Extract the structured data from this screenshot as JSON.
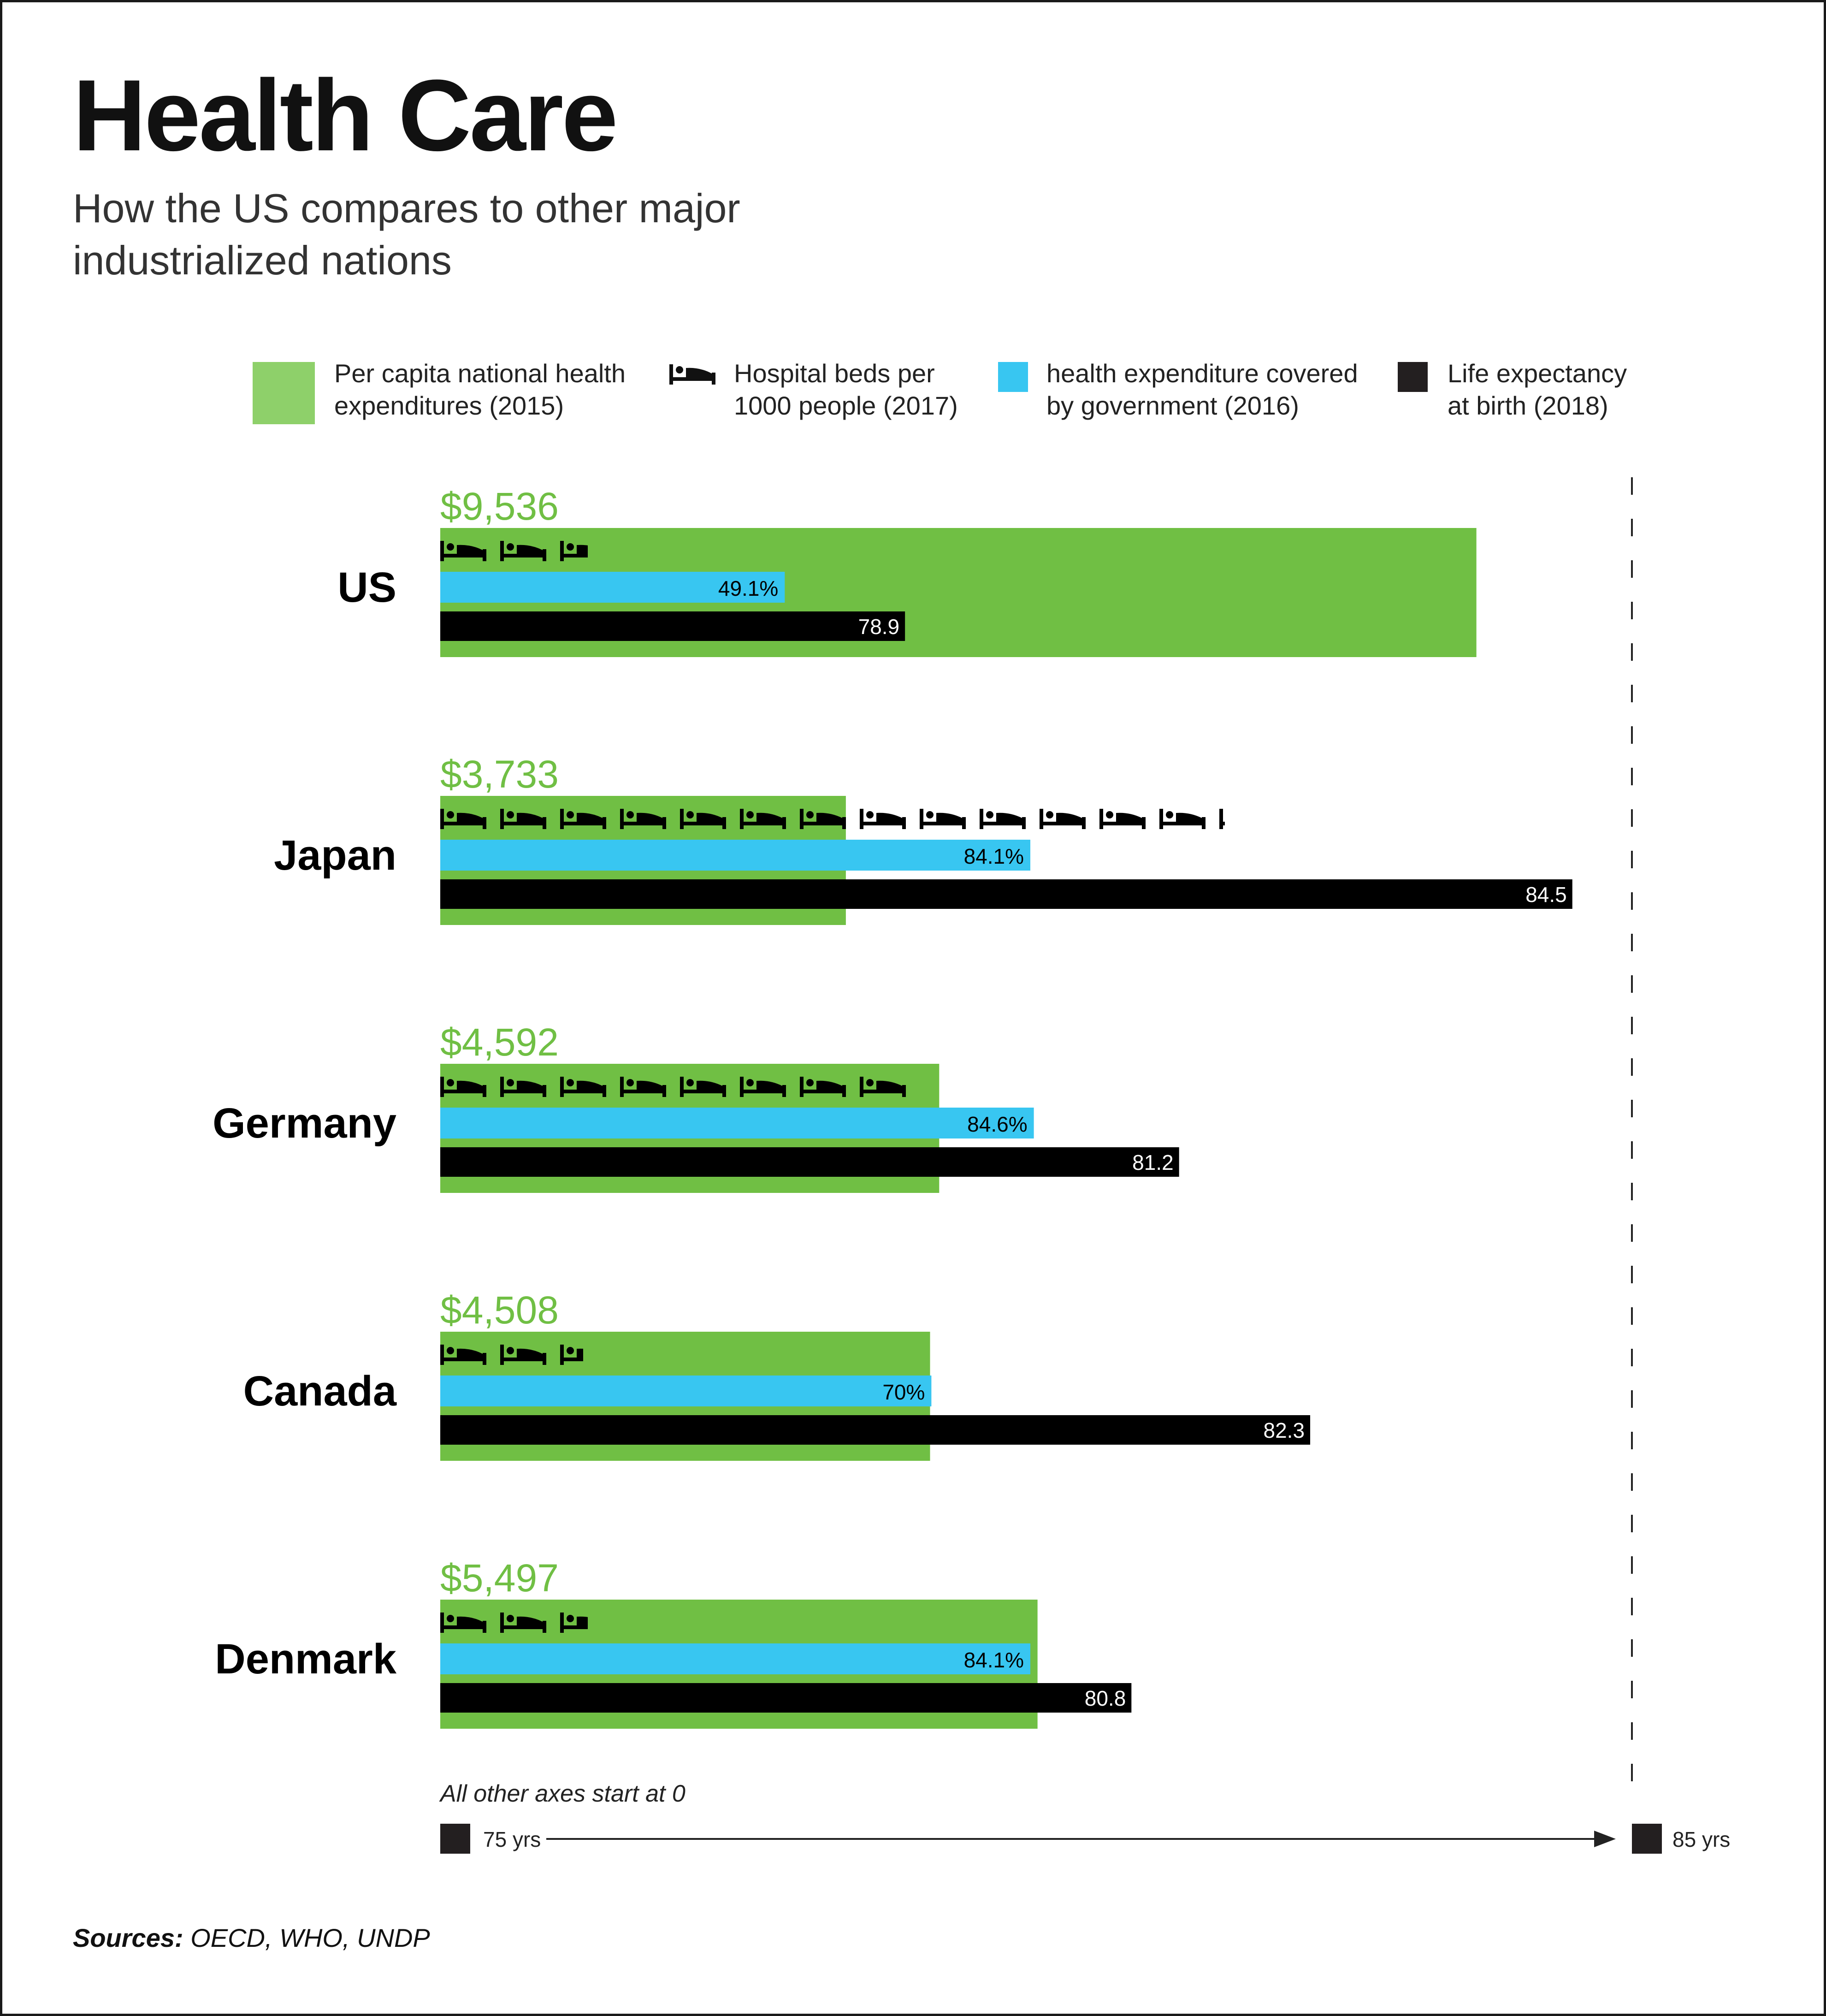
{
  "title": "Health Care",
  "subtitle": "How the US compares to other major industrialized nations",
  "legend": [
    {
      "label": "Per capita national health expenditures (2015)",
      "color": "#8ed06a",
      "icon": "green-square"
    },
    {
      "label": "Hospital beds per 1000 people (2017)",
      "icon": "bed-icon"
    },
    {
      "label": "health expenditure covered by government (2016)",
      "color": "#38c6f1",
      "icon": "blue-square"
    },
    {
      "label": "Life expectancy at birth (2018)",
      "color": "#231f20",
      "icon": "black-square"
    }
  ],
  "chart_data": {
    "type": "bar",
    "categories": [
      "US",
      "Japan",
      "Germany",
      "Canada",
      "Denmark"
    ],
    "series": [
      {
        "name": "Per capita national health expenditures (2015)",
        "unit": "$",
        "color": "#70bf44",
        "values": [
          9536,
          3733,
          4592,
          4508,
          5497
        ],
        "labels": [
          "$9,536",
          "$3,733",
          "$4,592",
          "$4,508",
          "$5,497"
        ]
      },
      {
        "name": "Hospital beds per 1000 people (2017)",
        "unit": "beds",
        "values": [
          2.6,
          13.1,
          8.0,
          2.5,
          2.6
        ]
      },
      {
        "name": "health expenditure covered by government (2016)",
        "unit": "%",
        "color": "#38c6f1",
        "values": [
          49.1,
          84.1,
          84.6,
          70,
          84.1
        ],
        "labels": [
          "49.1%",
          "84.1%",
          "84.6%",
          "70%",
          "84.1%"
        ]
      },
      {
        "name": "Life expectancy at birth (2018)",
        "unit": "yrs",
        "color": "#000000",
        "values": [
          78.9,
          84.5,
          81.2,
          82.3,
          80.8
        ],
        "labels": [
          "78.9",
          "84.5",
          "81.2",
          "82.3",
          "80.8"
        ]
      }
    ],
    "life_expectancy_axis": {
      "min": 75,
      "max": 85,
      "min_label": "75 yrs",
      "max_label": "85 yrs"
    },
    "other_axes_start": 0,
    "note": "All other axes start at 0"
  },
  "sources_label": "Sources:",
  "sources_text": " OECD, WHO, UNDP"
}
